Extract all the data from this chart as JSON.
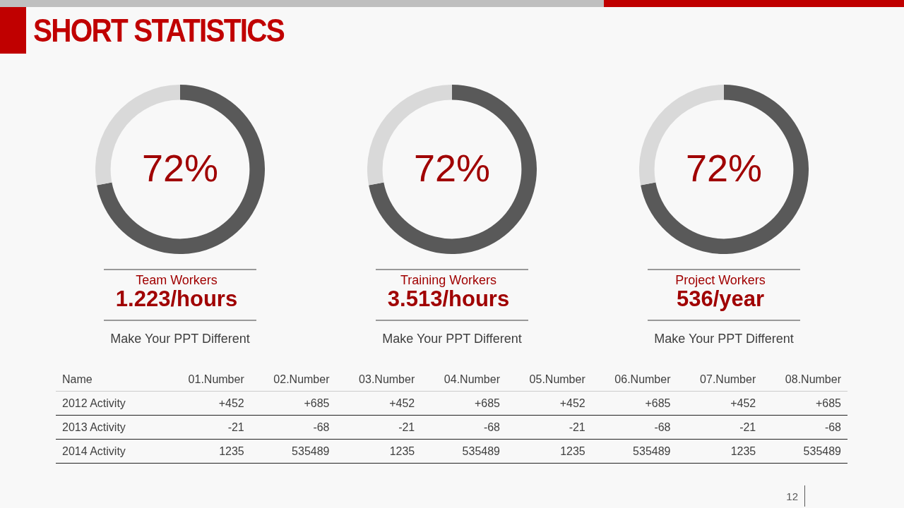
{
  "chart_data": [
    {
      "type": "donut",
      "categories": [
        null,
        null
      ],
      "values": [
        72,
        28
      ],
      "colors": [
        "#595959",
        "#d9d9d9"
      ],
      "value_labels": [
        "72%",
        null
      ],
      "title": "Team Workers",
      "subtitle": "1.223/hours",
      "annotations": [
        "Make Your PPT Different"
      ]
    },
    {
      "type": "donut",
      "categories": [
        null,
        null
      ],
      "values": [
        72,
        28
      ],
      "colors": [
        "#595959",
        "#d9d9d9"
      ],
      "value_labels": [
        "72%",
        null
      ],
      "title": "Training Workers",
      "subtitle": "3.513/hours",
      "annotations": [
        "Make Your PPT Different"
      ]
    },
    {
      "type": "donut",
      "categories": [
        null,
        null
      ],
      "values": [
        72,
        28
      ],
      "colors": [
        "#595959",
        "#d9d9d9"
      ],
      "value_labels": [
        "72%",
        null
      ],
      "title": "Project Workers",
      "subtitle": "536/year",
      "annotations": [
        "Make Your PPT Different"
      ]
    },
    {
      "type": "other",
      "title": "SHORT STATISTICS",
      "ylabel": "Name",
      "categories": [
        "01.Number",
        "02.Number",
        "03.Number",
        "04.Number",
        "05.Number",
        "06.Number",
        "07.Number",
        "08.Number"
      ],
      "series": [
        {
          "name": "2012 Activity",
          "values": [
            452,
            685,
            452,
            685,
            452,
            685,
            452,
            685
          ],
          "value_labels": [
            "+452",
            "+685",
            "+452",
            "+685",
            "+452",
            "+685",
            "+452",
            "+685"
          ]
        },
        {
          "name": "2013 Activity",
          "values": [
            -21,
            -68,
            -21,
            -68,
            -21,
            -68,
            -21,
            -68
          ],
          "data_labels": true
        },
        {
          "name": "2014 Activity",
          "values": [
            1235,
            535489,
            1235,
            535489,
            1235,
            535489,
            1235,
            535489
          ],
          "data_labels": true
        }
      ],
      "annotations": [
        "12"
      ]
    }
  ]
}
